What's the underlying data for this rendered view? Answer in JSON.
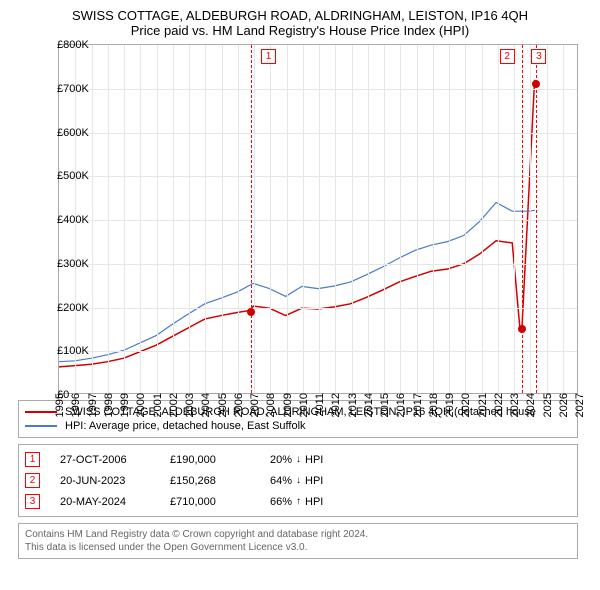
{
  "title_line1": "SWISS COTTAGE, ALDEBURGH ROAD, ALDRINGHAM, LEISTON, IP16 4QH",
  "title_line2": "Price paid vs. HM Land Registry's House Price Index (HPI)",
  "chart": {
    "type": "line",
    "background_color": "#ffffff",
    "border_color": "#aaaaaa",
    "grid_color": "#e6e6e6",
    "x_years": [
      "1995",
      "1996",
      "1997",
      "1998",
      "1999",
      "2000",
      "2001",
      "2002",
      "2003",
      "2004",
      "2005",
      "2006",
      "2007",
      "2008",
      "2009",
      "2010",
      "2011",
      "2012",
      "2013",
      "2014",
      "2015",
      "2016",
      "2017",
      "2018",
      "2019",
      "2020",
      "2021",
      "2022",
      "2023",
      "2024",
      "2025",
      "2026",
      "2027"
    ],
    "x_min": 1995,
    "x_max": 2027,
    "y_min": 0,
    "y_max": 800000,
    "y_ticks": [
      0,
      100000,
      200000,
      300000,
      400000,
      500000,
      600000,
      700000,
      800000
    ],
    "y_tick_labels": [
      "£0",
      "£100K",
      "£200K",
      "£300K",
      "£400K",
      "£500K",
      "£600K",
      "£700K",
      "£800K"
    ],
    "series": [
      {
        "name": "red",
        "label": "SWISS COTTAGE, ALDEBURGH ROAD, ALDRINGHAM, LEISTON, IP16 4QH (detached house",
        "color": "#d00000",
        "line_width": 1.5,
        "points": [
          [
            1995,
            60000
          ],
          [
            1996,
            63000
          ],
          [
            1997,
            66000
          ],
          [
            1998,
            72000
          ],
          [
            1999,
            80000
          ],
          [
            2000,
            95000
          ],
          [
            2001,
            110000
          ],
          [
            2002,
            130000
          ],
          [
            2003,
            150000
          ],
          [
            2004,
            170000
          ],
          [
            2005,
            178000
          ],
          [
            2006,
            185000
          ],
          [
            2006.82,
            190000
          ],
          [
            2007,
            200000
          ],
          [
            2008,
            195000
          ],
          [
            2009,
            178000
          ],
          [
            2010,
            195000
          ],
          [
            2011,
            193000
          ],
          [
            2012,
            198000
          ],
          [
            2013,
            205000
          ],
          [
            2014,
            220000
          ],
          [
            2015,
            237000
          ],
          [
            2016,
            255000
          ],
          [
            2017,
            268000
          ],
          [
            2018,
            280000
          ],
          [
            2019,
            285000
          ],
          [
            2020,
            297000
          ],
          [
            2021,
            320000
          ],
          [
            2022,
            350000
          ],
          [
            2023,
            345000
          ],
          [
            2023.47,
            150268
          ],
          [
            2023.6,
            150000
          ],
          [
            2024.38,
            720000
          ],
          [
            2024.38,
            710000
          ],
          [
            2024.39,
            710000
          ]
        ]
      },
      {
        "name": "blue",
        "label": "HPI: Average price, detached house, East Suffolk",
        "color": "#4a7bc8",
        "line_width": 1.2,
        "points": [
          [
            1995,
            72000
          ],
          [
            1996,
            74000
          ],
          [
            1997,
            80000
          ],
          [
            1998,
            88000
          ],
          [
            1999,
            98000
          ],
          [
            2000,
            115000
          ],
          [
            2001,
            132000
          ],
          [
            2002,
            158000
          ],
          [
            2003,
            182000
          ],
          [
            2004,
            205000
          ],
          [
            2005,
            218000
          ],
          [
            2006,
            232000
          ],
          [
            2007,
            252000
          ],
          [
            2008,
            240000
          ],
          [
            2009,
            222000
          ],
          [
            2010,
            245000
          ],
          [
            2011,
            240000
          ],
          [
            2012,
            246000
          ],
          [
            2013,
            255000
          ],
          [
            2014,
            272000
          ],
          [
            2015,
            290000
          ],
          [
            2016,
            310000
          ],
          [
            2017,
            328000
          ],
          [
            2018,
            340000
          ],
          [
            2019,
            348000
          ],
          [
            2020,
            362000
          ],
          [
            2021,
            395000
          ],
          [
            2022,
            438000
          ],
          [
            2023,
            418000
          ],
          [
            2024,
            418000
          ],
          [
            2024.4,
            420000
          ]
        ]
      }
    ],
    "markers": [
      {
        "id": "1",
        "year": 2006.82,
        "value": 190000,
        "badge_offset": 10,
        "dot_color": "#d00000"
      },
      {
        "id": "2",
        "year": 2023.47,
        "value": 150268,
        "badge_offset": -22,
        "dot_color": "#d00000"
      },
      {
        "id": "3",
        "year": 2024.38,
        "value": 710000,
        "badge_offset": -5,
        "dot_color": "#d00000"
      }
    ]
  },
  "legend": {
    "series1_label": "SWISS COTTAGE, ALDEBURGH ROAD, ALDRINGHAM, LEISTON, IP16 4QH (detached house",
    "series1_color": "#d00000",
    "series2_label": "HPI: Average price, detached house, East Suffolk",
    "series2_color": "#4a7bc8"
  },
  "events": [
    {
      "id": "1",
      "date": "27-OCT-2006",
      "price": "£190,000",
      "pct": "20%",
      "dir": "down",
      "suffix": "HPI"
    },
    {
      "id": "2",
      "date": "20-JUN-2023",
      "price": "£150,268",
      "pct": "64%",
      "dir": "down",
      "suffix": "HPI"
    },
    {
      "id": "3",
      "date": "20-MAY-2024",
      "price": "£710,000",
      "pct": "66%",
      "dir": "up",
      "suffix": "HPI"
    }
  ],
  "footer": {
    "line1": "Contains HM Land Registry data © Crown copyright and database right 2024.",
    "line2": "This data is licensed under the Open Government Licence v3.0."
  }
}
